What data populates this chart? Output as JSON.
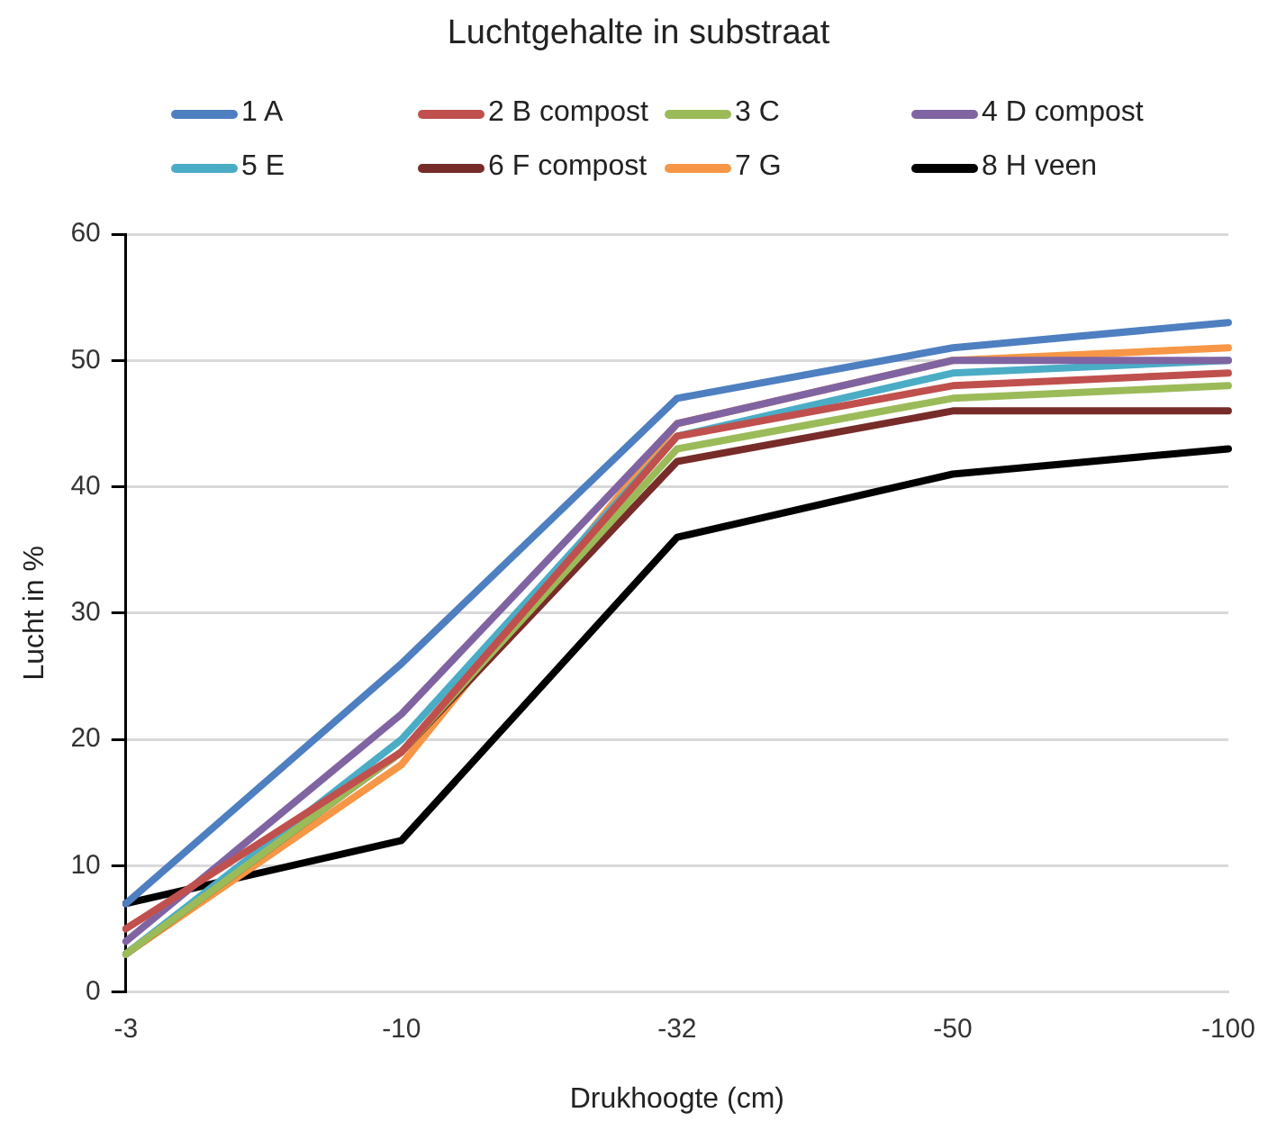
{
  "chart_data": {
    "type": "line",
    "title": "Luchtgehalte in substraat",
    "xlabel": "Drukhoogte (cm)",
    "ylabel": "Lucht in %",
    "categories": [
      "-3",
      "-10",
      "-32",
      "-50",
      "-100"
    ],
    "ylim": [
      0,
      60
    ],
    "yticks": [
      0,
      10,
      20,
      30,
      40,
      50,
      60
    ],
    "grid": "y",
    "legend": "top",
    "marker": "none",
    "line_style": "solid",
    "series": [
      {
        "name": "1 A",
        "color": "#4e7fc0",
        "values": [
          7,
          26,
          47,
          51,
          53
        ]
      },
      {
        "name": "2 B compost",
        "color": "#c0504d",
        "values": [
          5,
          19,
          44,
          48,
          49
        ]
      },
      {
        "name": "3 C",
        "color": "#9bbb59",
        "values": [
          3,
          19,
          43,
          47,
          48
        ]
      },
      {
        "name": "4 D compost",
        "color": "#8064a2",
        "values": [
          4,
          22,
          45,
          50,
          50
        ]
      },
      {
        "name": "5 E",
        "color": "#4bacc6",
        "values": [
          3,
          20,
          44,
          49,
          50
        ]
      },
      {
        "name": "6 F compost",
        "color": "#772c2a",
        "values": [
          3,
          19,
          42,
          46,
          46
        ]
      },
      {
        "name": "7 G",
        "color": "#f79646",
        "values": [
          3,
          18,
          45,
          50,
          51
        ]
      },
      {
        "name": "8 H veen",
        "color": "#000000",
        "values": [
          7,
          12,
          36,
          41,
          43
        ]
      }
    ]
  }
}
